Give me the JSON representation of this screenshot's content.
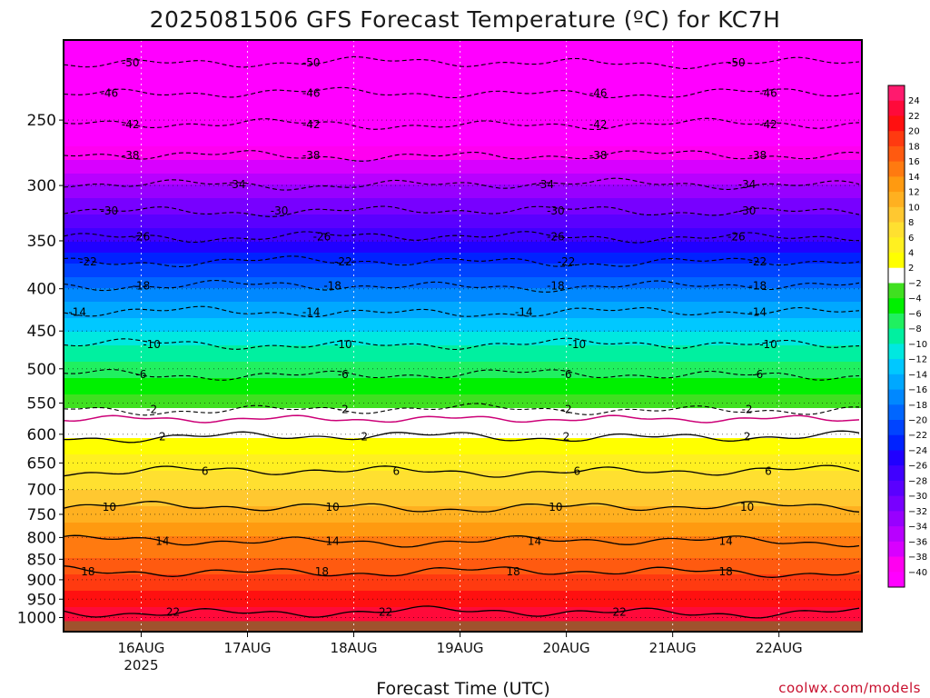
{
  "title": "2025081506 GFS Forecast Temperature (ºC) for KC7H",
  "xlabel": "Forecast Time (UTC)",
  "credit": "coolwx.com/models",
  "colors": {
    "ground": "#a0522d",
    "freezing_line": "#cc0077",
    "grid": "#ffffff"
  },
  "chart_data": {
    "type": "heatmap",
    "title": "2025081506 GFS Forecast Temperature (ºC) for KC7H",
    "xlabel": "Forecast Time (UTC)",
    "ylabel": "",
    "y_scale": "log-pressure",
    "y_inverted": true,
    "ylim_hpa": [
      1040,
      200
    ],
    "y_ticks": [
      250,
      300,
      350,
      400,
      450,
      500,
      550,
      600,
      650,
      700,
      750,
      800,
      850,
      900,
      950,
      1000
    ],
    "x_start_day": "15AUG 12Z",
    "x_end_day": "22AUG 18Z",
    "x_range_days": [
      15.27,
      22.78
    ],
    "x_ticks": [
      {
        "day": 16,
        "label": "16AUG",
        "sub": "2025"
      },
      {
        "day": 17,
        "label": "17AUG",
        "sub": ""
      },
      {
        "day": 18,
        "label": "18AUG",
        "sub": ""
      },
      {
        "day": 19,
        "label": "19AUG",
        "sub": ""
      },
      {
        "day": 20,
        "label": "20AUG",
        "sub": ""
      },
      {
        "day": 21,
        "label": "21AUG",
        "sub": ""
      },
      {
        "day": 22,
        "label": "22AUG",
        "sub": ""
      }
    ],
    "temperature_profile": [
      {
        "p": 200,
        "t": -56
      },
      {
        "p": 230,
        "t": -48
      },
      {
        "p": 260,
        "t": -42
      },
      {
        "p": 300,
        "t": -34
      },
      {
        "p": 350,
        "t": -26
      },
      {
        "p": 400,
        "t": -18
      },
      {
        "p": 450,
        "t": -12
      },
      {
        "p": 500,
        "t": -7
      },
      {
        "p": 550,
        "t": -3
      },
      {
        "p": 575,
        "t": 0
      },
      {
        "p": 600,
        "t": 1.5
      },
      {
        "p": 650,
        "t": 5
      },
      {
        "p": 700,
        "t": 8
      },
      {
        "p": 750,
        "t": 11
      },
      {
        "p": 800,
        "t": 14
      },
      {
        "p": 850,
        "t": 16
      },
      {
        "p": 900,
        "t": 18.5
      },
      {
        "p": 950,
        "t": 21
      },
      {
        "p": 1000,
        "t": 23
      },
      {
        "p": 1040,
        "t": 24
      }
    ],
    "contours": [
      {
        "value": -50,
        "p": 213,
        "style": "dashed",
        "labels": [
          {
            "day": 15.9
          },
          {
            "day": 17.6
          },
          {
            "day": 21.6
          }
        ]
      },
      {
        "value": -46,
        "p": 232,
        "style": "dashed",
        "labels": [
          {
            "day": 15.7
          },
          {
            "day": 17.6
          },
          {
            "day": 20.3
          },
          {
            "day": 21.9
          }
        ]
      },
      {
        "value": -42,
        "p": 253,
        "style": "dashed",
        "labels": [
          {
            "day": 15.9
          },
          {
            "day": 17.6
          },
          {
            "day": 20.3
          },
          {
            "day": 21.9
          }
        ]
      },
      {
        "value": -38,
        "p": 276,
        "style": "dashed",
        "labels": [
          {
            "day": 15.9
          },
          {
            "day": 17.6
          },
          {
            "day": 20.3
          },
          {
            "day": 21.8
          }
        ]
      },
      {
        "value": -34,
        "p": 299,
        "style": "dashed",
        "labels": [
          {
            "day": 16.9
          },
          {
            "day": 19.8
          },
          {
            "day": 21.7
          }
        ]
      },
      {
        "value": -30,
        "p": 322,
        "style": "dashed",
        "labels": [
          {
            "day": 15.7
          },
          {
            "day": 17.3
          },
          {
            "day": 19.9
          },
          {
            "day": 21.7
          }
        ]
      },
      {
        "value": -26,
        "p": 346,
        "style": "dashed",
        "labels": [
          {
            "day": 16.0
          },
          {
            "day": 17.7
          },
          {
            "day": 19.9
          },
          {
            "day": 21.6
          }
        ]
      },
      {
        "value": -22,
        "p": 371,
        "style": "dashed",
        "labels": [
          {
            "day": 15.5
          },
          {
            "day": 17.9
          },
          {
            "day": 20.0
          },
          {
            "day": 21.8
          }
        ]
      },
      {
        "value": -18,
        "p": 397,
        "style": "dashed",
        "labels": [
          {
            "day": 16.0
          },
          {
            "day": 17.8
          },
          {
            "day": 19.9
          },
          {
            "day": 21.8
          }
        ]
      },
      {
        "value": -14,
        "p": 427,
        "style": "dashed",
        "labels": [
          {
            "day": 15.4
          },
          {
            "day": 17.6
          },
          {
            "day": 19.6
          },
          {
            "day": 21.8
          }
        ]
      },
      {
        "value": -10,
        "p": 467,
        "style": "dashed",
        "labels": [
          {
            "day": 16.1
          },
          {
            "day": 17.9
          },
          {
            "day": 20.1
          },
          {
            "day": 21.9
          }
        ]
      },
      {
        "value": -6,
        "p": 508,
        "style": "dashed",
        "labels": [
          {
            "day": 16.0
          },
          {
            "day": 17.9
          },
          {
            "day": 20.0
          },
          {
            "day": 21.8
          }
        ]
      },
      {
        "value": -2,
        "p": 560,
        "style": "dashed",
        "labels": [
          {
            "day": 16.1
          },
          {
            "day": 17.9
          },
          {
            "day": 20.0
          },
          {
            "day": 21.7
          }
        ]
      },
      {
        "value": 2,
        "p": 604,
        "style": "solid",
        "labels": [
          {
            "day": 16.2
          },
          {
            "day": 18.1
          },
          {
            "day": 20.0
          },
          {
            "day": 21.7
          }
        ]
      },
      {
        "value": 6,
        "p": 665,
        "style": "solid",
        "labels": [
          {
            "day": 16.6
          },
          {
            "day": 18.4
          },
          {
            "day": 20.1
          },
          {
            "day": 21.9
          }
        ]
      },
      {
        "value": 10,
        "p": 735,
        "style": "solid",
        "labels": [
          {
            "day": 15.7
          },
          {
            "day": 17.8
          },
          {
            "day": 19.9
          },
          {
            "day": 21.7
          }
        ]
      },
      {
        "value": 14,
        "p": 808,
        "style": "solid",
        "labels": [
          {
            "day": 16.2
          },
          {
            "day": 17.8
          },
          {
            "day": 19.7
          },
          {
            "day": 21.5
          }
        ]
      },
      {
        "value": 18,
        "p": 880,
        "style": "solid",
        "labels": [
          {
            "day": 15.5
          },
          {
            "day": 17.7
          },
          {
            "day": 19.5
          },
          {
            "day": 21.5
          }
        ]
      },
      {
        "value": 22,
        "p": 985,
        "style": "solid",
        "labels": [
          {
            "day": 16.3
          },
          {
            "day": 18.3
          },
          {
            "day": 20.5
          }
        ]
      }
    ],
    "colorbar": {
      "ticks": [
        24,
        22,
        20,
        18,
        16,
        14,
        12,
        10,
        8,
        6,
        4,
        2,
        -2,
        -4,
        -6,
        -8,
        -10,
        -12,
        -14,
        -16,
        -18,
        -20,
        -22,
        -24,
        -26,
        -28,
        -30,
        -32,
        -34,
        -36,
        -38,
        -40
      ],
      "tick_labels": [
        "24",
        "22",
        "20",
        "18",
        "16",
        "14",
        "12",
        "10",
        "8",
        "6",
        "4",
        "2",
        "−2",
        "−4",
        "−6",
        "−8",
        "−10",
        "−12",
        "−14",
        "−16",
        "−18",
        "−20",
        "−22",
        "−24",
        "−26",
        "−28",
        "−30",
        "−32",
        "−34",
        "−36",
        "−38",
        "−40"
      ],
      "colors": [
        "#ff1a6e",
        "#ff0a3a",
        "#ff1010",
        "#ff3a10",
        "#ff5a10",
        "#ff7a10",
        "#ff9a10",
        "#ffb020",
        "#ffc830",
        "#ffe030",
        "#fff020",
        "#ffff00",
        "#ffffff",
        "#40e020",
        "#00f000",
        "#20f060",
        "#00f0a0",
        "#00e8e0",
        "#00c8ff",
        "#00a8ff",
        "#0088ff",
        "#0066ff",
        "#0044ff",
        "#0022ff",
        "#2000ff",
        "#4000ff",
        "#5a00ff",
        "#7800ff",
        "#9800ff",
        "#b800ff",
        "#d800ff",
        "#ff00f0",
        "#ff00ff"
      ]
    }
  }
}
